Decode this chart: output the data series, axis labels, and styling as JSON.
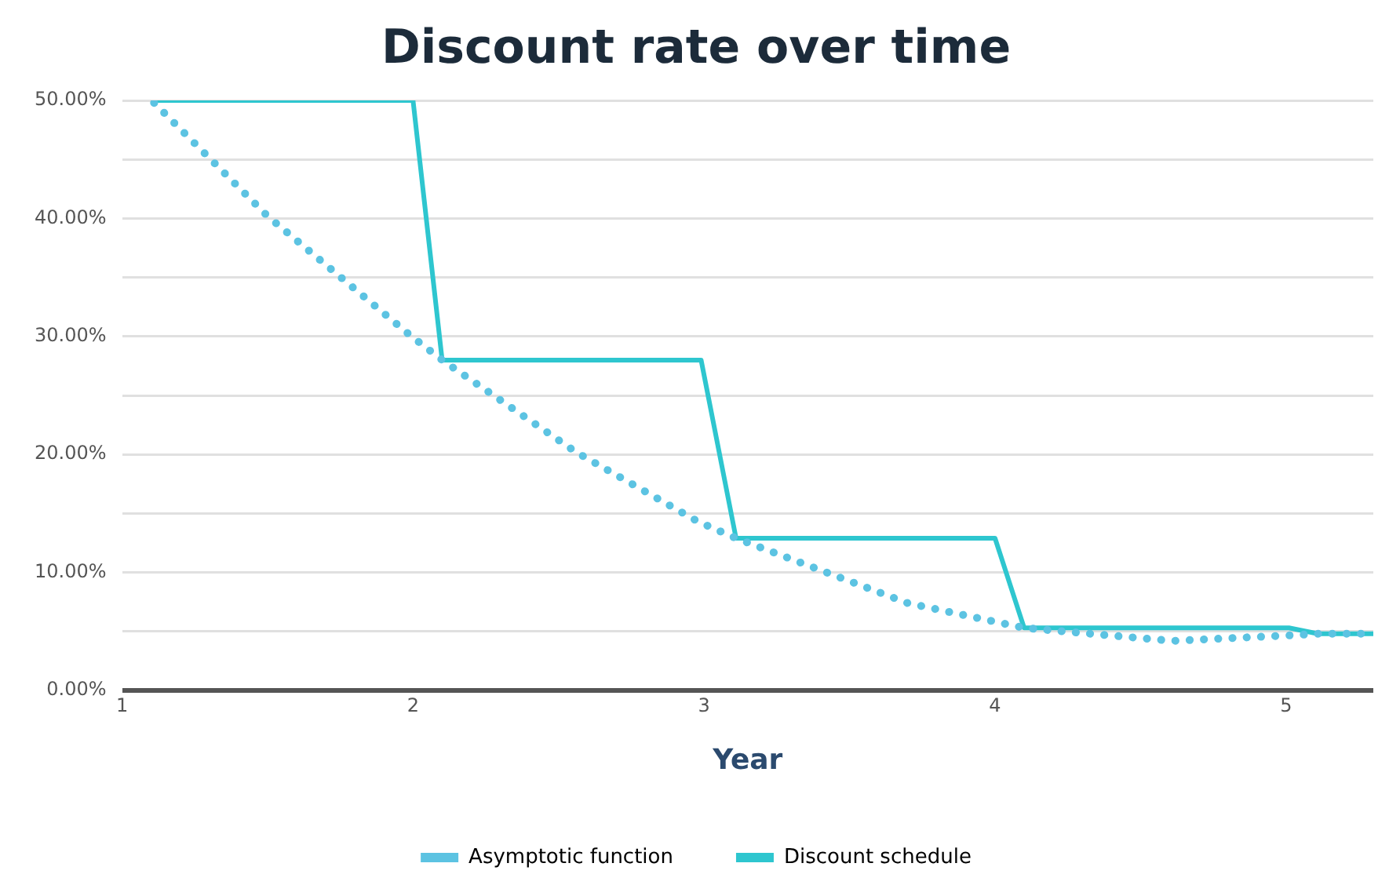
{
  "chart_data": {
    "type": "line",
    "title": "Discount rate over time",
    "xlabel": "Year",
    "xlim": [
      1,
      5.3
    ],
    "xticks": [
      1,
      2,
      3,
      4,
      5
    ],
    "ylim": [
      0,
      50
    ],
    "yticks": [
      {
        "value": 0,
        "label": "0.00%"
      },
      {
        "value": 5,
        "label": null
      },
      {
        "value": 10,
        "label": "10.00%"
      },
      {
        "value": 15,
        "label": null
      },
      {
        "value": 20,
        "label": "20.00%"
      },
      {
        "value": 25,
        "label": null
      },
      {
        "value": 30,
        "label": "30.00%"
      },
      {
        "value": 35,
        "label": null
      },
      {
        "value": 40,
        "label": "40.00%"
      },
      {
        "value": 45,
        "label": null
      },
      {
        "value": 50,
        "label": "50.00%"
      }
    ],
    "grid": "y",
    "legend": "bottom",
    "marker": "none",
    "series": [
      {
        "name": "Asymptotic function",
        "color": "#5cc3e2",
        "line_style": "dotted",
        "x": [
          1.11,
          1.5,
          1.99,
          2.1,
          2.56,
          2.98,
          3.11,
          3.7,
          4.1,
          4.61,
          5.04,
          5.11,
          5.3
        ],
        "values": [
          49.8,
          40.2,
          30.1,
          28,
          20.2,
          14.3,
          12.9,
          7.4,
          5.3,
          4.2,
          4.7,
          4.8,
          4.8
        ]
      },
      {
        "name": "Discount schedule",
        "color": "#2ec6cf",
        "line_style": "solid",
        "x": [
          1.11,
          2.0,
          2.1,
          2.99,
          3.11,
          4.0,
          4.1,
          5.01,
          5.11,
          5.3
        ],
        "values": [
          50,
          50,
          28,
          28,
          12.9,
          12.9,
          5.3,
          5.3,
          4.8,
          4.8
        ]
      }
    ]
  }
}
